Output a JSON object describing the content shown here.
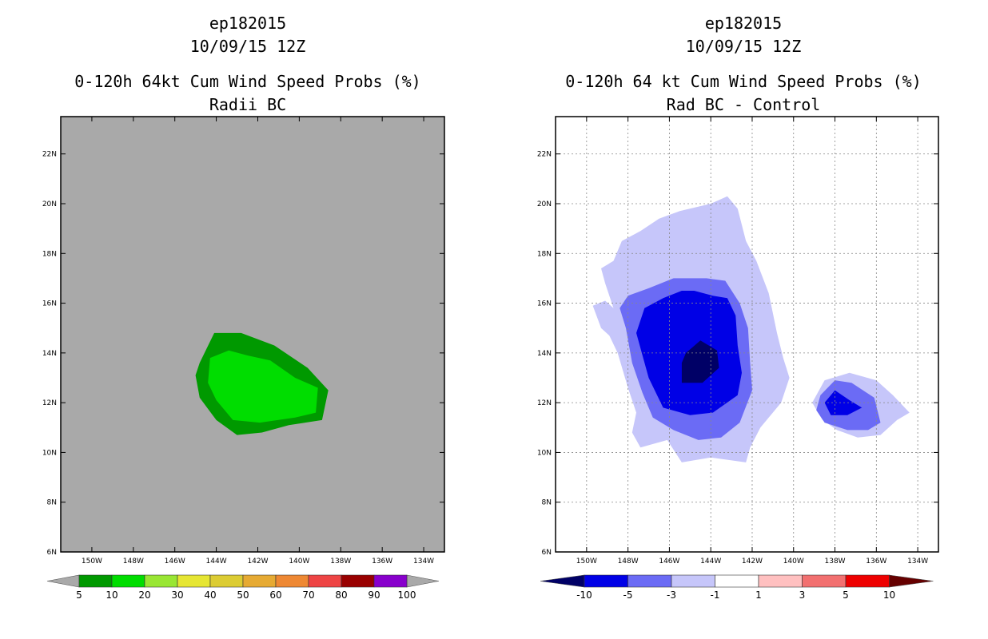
{
  "chart_data": [
    {
      "type": "heatmap",
      "title_lines": [
        "ep182015",
        "10/09/15 12Z",
        "0-120h 64kt Cum Wind Speed Probs (%)",
        "Radii BC"
      ],
      "xlabel": "",
      "ylabel": "",
      "x_ticks": [
        "150W",
        "148W",
        "146W",
        "144W",
        "142W",
        "140W",
        "138W",
        "136W",
        "134W"
      ],
      "y_ticks": [
        "6N",
        "8N",
        "10N",
        "12N",
        "14N",
        "16N",
        "18N",
        "20N",
        "22N"
      ],
      "xlim": [
        -151.5,
        -133.0
      ],
      "ylim": [
        6,
        23.5
      ],
      "grid": false,
      "background_color": "#a9a9a9",
      "colorbar": {
        "labels": [
          "5",
          "10",
          "20",
          "30",
          "40",
          "50",
          "60",
          "70",
          "80",
          "90",
          "100"
        ],
        "colors": [
          "#009900",
          "#00dd00",
          "#99e633",
          "#e6e633",
          "#dccc33",
          "#e6aa33",
          "#ee8833",
          "#ee4444",
          "#990000",
          "#8800cc"
        ],
        "under_color": "#a9a9a9",
        "over_color": "#a9a9a9"
      },
      "contours": [
        {
          "level": "5-10",
          "color": "#009900",
          "points": [
            [
              -144.8,
              13.6
            ],
            [
              -144.1,
              14.8
            ],
            [
              -142.8,
              14.8
            ],
            [
              -141.2,
              14.3
            ],
            [
              -139.6,
              13.4
            ],
            [
              -138.6,
              12.5
            ],
            [
              -138.9,
              11.3
            ],
            [
              -140.5,
              11.1
            ],
            [
              -141.8,
              10.8
            ],
            [
              -143.0,
              10.7
            ],
            [
              -144.0,
              11.3
            ],
            [
              -144.8,
              12.2
            ],
            [
              -145.0,
              13.1
            ]
          ]
        },
        {
          "level": "10-20",
          "color": "#00dd00",
          "points": [
            [
              -144.3,
              13.8
            ],
            [
              -143.4,
              14.1
            ],
            [
              -142.5,
              13.9
            ],
            [
              -141.4,
              13.7
            ],
            [
              -140.2,
              13.0
            ],
            [
              -139.1,
              12.6
            ],
            [
              -139.2,
              11.6
            ],
            [
              -140.2,
              11.4
            ],
            [
              -141.9,
              11.2
            ],
            [
              -143.2,
              11.3
            ],
            [
              -144.0,
              12.1
            ],
            [
              -144.4,
              12.8
            ]
          ]
        }
      ]
    },
    {
      "type": "heatmap",
      "title_lines": [
        "ep182015",
        "10/09/15 12Z",
        "0-120h 64 kt Cum Wind Speed Probs (%)",
        "Rad BC - Control"
      ],
      "xlabel": "",
      "ylabel": "",
      "x_ticks": [
        "150W",
        "148W",
        "146W",
        "144W",
        "142W",
        "140W",
        "138W",
        "136W",
        "134W"
      ],
      "y_ticks": [
        "6N",
        "8N",
        "10N",
        "12N",
        "14N",
        "16N",
        "18N",
        "20N",
        "22N"
      ],
      "xlim": [
        -151.5,
        -133.0
      ],
      "ylim": [
        6,
        23.5
      ],
      "grid": true,
      "background_color": "#ffffff",
      "colorbar": {
        "labels": [
          "-10",
          "-5",
          "-3",
          "-1",
          "1",
          "3",
          "5",
          "10"
        ],
        "colors": [
          "#0000e6",
          "#6b6bf5",
          "#c6c6fa",
          "#ffffff",
          "#ffc0c0",
          "#f27070",
          "#ee0000"
        ],
        "under_color": "#000066",
        "over_color": "#660000"
      },
      "contours": [
        {
          "level": "-3 to -1",
          "color": "#c6c6fa",
          "points": [
            [
              -147.4,
              18.9
            ],
            [
              -146.5,
              19.4
            ],
            [
              -145.5,
              19.7
            ],
            [
              -144.0,
              20.0
            ],
            [
              -143.2,
              20.3
            ],
            [
              -142.7,
              19.8
            ],
            [
              -142.3,
              18.5
            ],
            [
              -141.8,
              17.7
            ],
            [
              -141.2,
              16.4
            ],
            [
              -140.8,
              14.8
            ],
            [
              -140.5,
              13.8
            ],
            [
              -140.2,
              13.0
            ],
            [
              -140.6,
              12.0
            ],
            [
              -141.6,
              11.0
            ],
            [
              -142.1,
              10.2
            ],
            [
              -142.3,
              9.6
            ],
            [
              -144.0,
              9.8
            ],
            [
              -145.4,
              9.6
            ],
            [
              -146.1,
              10.5
            ],
            [
              -147.4,
              10.2
            ],
            [
              -147.8,
              10.8
            ],
            [
              -147.6,
              11.6
            ],
            [
              -148.0,
              12.6
            ],
            [
              -148.5,
              14.0
            ],
            [
              -148.9,
              14.7
            ],
            [
              -149.3,
              15.0
            ],
            [
              -149.7,
              15.9
            ],
            [
              -149.1,
              16.1
            ],
            [
              -148.7,
              15.8
            ],
            [
              -149.1,
              16.8
            ],
            [
              -149.3,
              17.4
            ],
            [
              -148.7,
              17.7
            ],
            [
              -148.3,
              18.5
            ]
          ]
        },
        {
          "level": "-3 to -1",
          "color": "#c6c6fa",
          "points": [
            [
              -139.1,
              12.0
            ],
            [
              -138.5,
              12.9
            ],
            [
              -137.3,
              13.2
            ],
            [
              -136.0,
              12.9
            ],
            [
              -135.2,
              12.3
            ],
            [
              -134.4,
              11.6
            ],
            [
              -135.0,
              11.3
            ],
            [
              -135.8,
              10.7
            ],
            [
              -136.9,
              10.6
            ],
            [
              -137.9,
              10.9
            ],
            [
              -138.6,
              11.3
            ]
          ]
        },
        {
          "level": "-5 to -3",
          "color": "#6b6bf5",
          "points": [
            [
              -148.0,
              16.3
            ],
            [
              -147.0,
              16.6
            ],
            [
              -145.8,
              17.0
            ],
            [
              -144.2,
              17.0
            ],
            [
              -143.3,
              16.9
            ],
            [
              -142.6,
              16.0
            ],
            [
              -142.2,
              15.0
            ],
            [
              -142.1,
              13.6
            ],
            [
              -142.0,
              12.5
            ],
            [
              -142.6,
              11.2
            ],
            [
              -143.5,
              10.6
            ],
            [
              -144.6,
              10.5
            ],
            [
              -145.8,
              10.9
            ],
            [
              -146.8,
              11.4
            ],
            [
              -147.3,
              12.4
            ],
            [
              -147.8,
              13.6
            ],
            [
              -148.1,
              15.0
            ],
            [
              -148.4,
              15.8
            ]
          ]
        },
        {
          "level": "-5 to -3",
          "color": "#6b6bf5",
          "points": [
            [
              -138.7,
              12.3
            ],
            [
              -138.0,
              12.9
            ],
            [
              -137.2,
              12.8
            ],
            [
              -136.1,
              12.2
            ],
            [
              -135.8,
              11.2
            ],
            [
              -136.4,
              10.9
            ],
            [
              -137.4,
              10.9
            ],
            [
              -138.5,
              11.2
            ],
            [
              -138.9,
              11.7
            ]
          ]
        },
        {
          "level": "-10 to -5",
          "color": "#0000e6",
          "points": [
            [
              -147.6,
              14.8
            ],
            [
              -147.2,
              15.8
            ],
            [
              -146.3,
              16.2
            ],
            [
              -145.4,
              16.5
            ],
            [
              -144.8,
              16.5
            ],
            [
              -143.9,
              16.3
            ],
            [
              -143.2,
              16.2
            ],
            [
              -142.8,
              15.5
            ],
            [
              -142.7,
              14.3
            ],
            [
              -142.5,
              13.2
            ],
            [
              -142.7,
              12.3
            ],
            [
              -143.9,
              11.6
            ],
            [
              -145.0,
              11.5
            ],
            [
              -146.3,
              11.8
            ],
            [
              -147.0,
              13.0
            ]
          ]
        },
        {
          "level": "-10 to -5",
          "color": "#0000e6",
          "points": [
            [
              -138.5,
              12.0
            ],
            [
              -138.0,
              12.5
            ],
            [
              -137.3,
              12.1
            ],
            [
              -136.7,
              11.8
            ],
            [
              -137.4,
              11.5
            ],
            [
              -138.2,
              11.5
            ]
          ]
        },
        {
          "level": "< -10",
          "color": "#000066",
          "points": [
            [
              -145.4,
              13.6
            ],
            [
              -145.2,
              14.0
            ],
            [
              -144.5,
              14.5
            ],
            [
              -143.7,
              14.1
            ],
            [
              -143.6,
              13.4
            ],
            [
              -144.4,
              12.8
            ],
            [
              -145.4,
              12.8
            ]
          ]
        }
      ]
    }
  ]
}
